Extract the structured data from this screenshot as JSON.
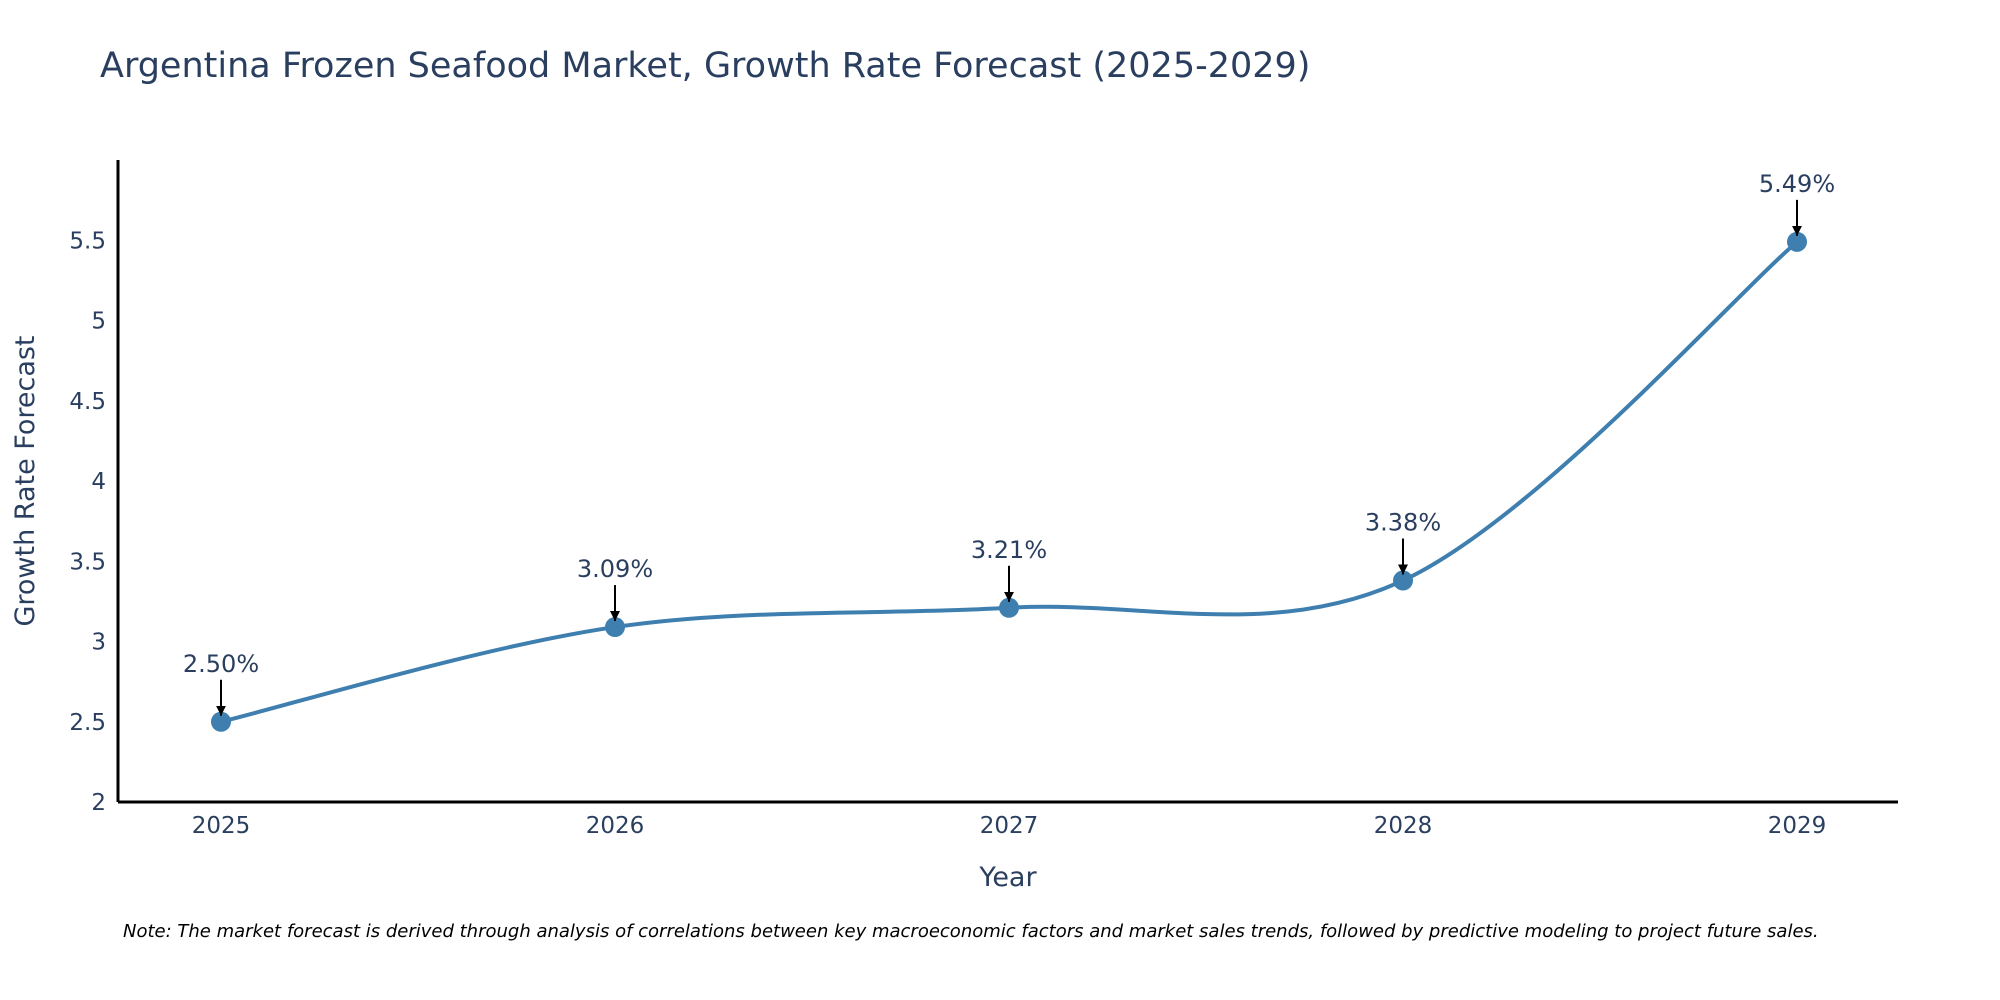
{
  "chart_data": {
    "type": "line",
    "title": "Argentina Frozen Seafood Market, Growth Rate Forecast (2025-2029)",
    "xlabel": "Year",
    "ylabel": "Growth Rate Forecast",
    "categories": [
      "2025",
      "2026",
      "2027",
      "2028",
      "2029"
    ],
    "values": [
      2.5,
      3.09,
      3.21,
      3.38,
      5.49
    ],
    "data_labels": [
      "2.50%",
      "3.09%",
      "3.21%",
      "3.38%",
      "5.49%"
    ],
    "y_ticks": [
      2,
      2.5,
      3,
      3.5,
      4,
      4.5,
      5,
      5.5
    ],
    "y_tick_labels": [
      "2",
      "2.5",
      "3",
      "3.5",
      "4",
      "4.5",
      "5",
      "5.5"
    ],
    "ylim": [
      2,
      6
    ],
    "grid": false,
    "line_shape": "spline",
    "colors": {
      "line": "#3e7fb0",
      "marker": "#3e7fb0",
      "arrow": "#000000",
      "axis": "#000000",
      "text": "#2a3f5f"
    }
  },
  "footnote": "Note: The market forecast is derived through analysis of correlations between key macroeconomic factors and market sales trends, followed by predictive modeling to project future sales."
}
